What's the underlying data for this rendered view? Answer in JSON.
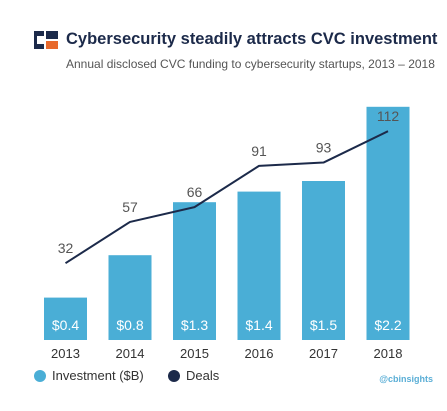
{
  "header": {
    "title": "Cybersecurity steadily attracts CVC investment",
    "subtitle": "Annual disclosed CVC funding to cybersecurity startups,  2013 – 2018"
  },
  "legend": {
    "investment_label": "Investment ($B)",
    "deals_label": "Deals"
  },
  "watermark": "@cbinsights",
  "colors": {
    "bar": "#4aaed6",
    "line": "#1c2a4a",
    "bar_label": "#ffffff",
    "tick_label": "#333333",
    "deal_label": "#555555"
  },
  "chart_data": {
    "type": "bar",
    "categories": [
      "2013",
      "2014",
      "2015",
      "2016",
      "2017",
      "2018"
    ],
    "series": [
      {
        "name": "Investment ($B)",
        "type": "bar",
        "values": [
          0.4,
          0.8,
          1.3,
          1.4,
          1.5,
          2.2
        ],
        "labels": [
          "$0.4",
          "$0.8",
          "$1.3",
          "$1.4",
          "$1.5",
          "$2.2"
        ]
      },
      {
        "name": "Deals",
        "type": "line",
        "values": [
          32,
          57,
          66,
          91,
          93,
          112
        ],
        "labels": [
          "32",
          "57",
          "66",
          "91",
          "93",
          "112"
        ]
      }
    ],
    "title": "Cybersecurity steadily attracts CVC investment",
    "subtitle": "Annual disclosed CVC funding to cybersecurity startups,  2013 – 2018",
    "grid": false,
    "legend_position": "bottom-left"
  }
}
